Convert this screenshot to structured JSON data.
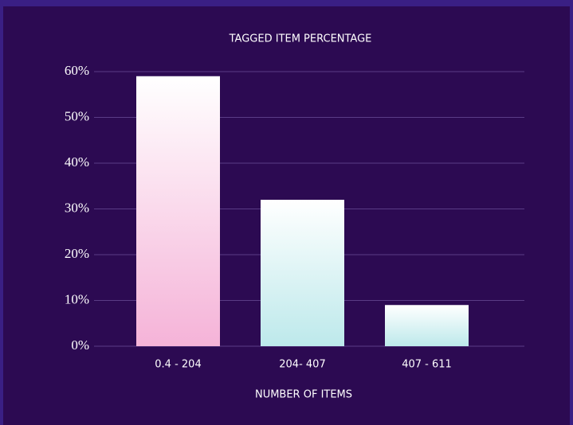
{
  "chart_data": {
    "type": "bar",
    "title": "TAGGED ITEM PERCENTAGE",
    "x_label": "NUMBER OF ITEMS",
    "categories": [
      "0.4 - 204",
      "204- 407",
      "407 - 611"
    ],
    "values": [
      59,
      32,
      9
    ],
    "colors": [
      "#f5b3d8",
      "#bde9eb",
      "#bde9eb"
    ],
    "ylim": [
      0,
      60
    ],
    "yticks": [
      {
        "value": 0,
        "label": "0%"
      },
      {
        "value": 10,
        "label": "10%"
      },
      {
        "value": 20,
        "label": "20%"
      },
      {
        "value": 30,
        "label": "30%"
      },
      {
        "value": 40,
        "label": "40%"
      },
      {
        "value": 50,
        "label": "50%"
      },
      {
        "value": 60,
        "label": "60%"
      }
    ],
    "grid": true
  }
}
